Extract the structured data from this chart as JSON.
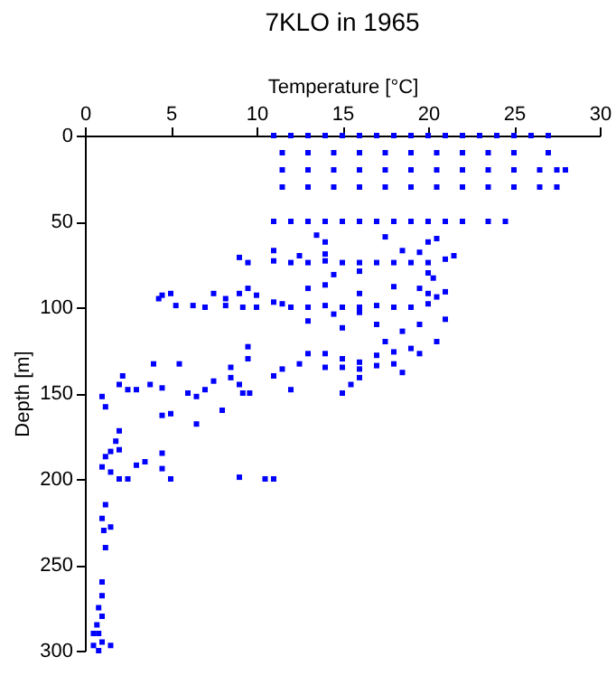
{
  "chart_data": {
    "type": "scatter",
    "title": "7KLO in 1965",
    "xlabel": "Temperature [°C]",
    "ylabel": "Depth [m]",
    "xlim": [
      0,
      30
    ],
    "xticks": [
      0,
      5,
      10,
      15,
      20,
      25,
      30
    ],
    "ylim": [
      300,
      0
    ],
    "yticks": [
      0,
      50,
      100,
      150,
      200,
      250,
      300
    ],
    "grid": false,
    "marker": "square",
    "series": [
      {
        "color": "#0000ff",
        "x": [
          11,
          12,
          13,
          14,
          15,
          16,
          17,
          18,
          19,
          20,
          21,
          22,
          23,
          24,
          25,
          26,
          27,
          11.5,
          13,
          14.5,
          16,
          17.5,
          19,
          20.5,
          22,
          23.5,
          25,
          27,
          11.5,
          13,
          14.5,
          16,
          17.5,
          19,
          20.5,
          22,
          23.5,
          25,
          26.5,
          27.5,
          28,
          11.5,
          13,
          14.5,
          16,
          17.5,
          19,
          20.5,
          22,
          23.5,
          25,
          26.5,
          27.5,
          11,
          12,
          13,
          14,
          15,
          16,
          17,
          18,
          19,
          20,
          21,
          22,
          23.5,
          24.5,
          13.5,
          14,
          17.5,
          20,
          20.5,
          11,
          12.5,
          14,
          18.5,
          19.5,
          9,
          9.5,
          11,
          12,
          13,
          14,
          15,
          16,
          17,
          18,
          19,
          20,
          21,
          21.5,
          14.5,
          16,
          20,
          20.3,
          9.5,
          13,
          14,
          18,
          19.5,
          4.5,
          5,
          7.5,
          9,
          10,
          16,
          20,
          4.3,
          5.3,
          6.3,
          7,
          8.2,
          8.2,
          9.2,
          10,
          11,
          11.5,
          12,
          13,
          14,
          15,
          16,
          17,
          18,
          19,
          20,
          20.5,
          21,
          13,
          15,
          17,
          18.5,
          19.5,
          21,
          20.5,
          17.5,
          14.5,
          16,
          9.5,
          9.5,
          13,
          14,
          15,
          16,
          17,
          18,
          19,
          19.5,
          14,
          15,
          16,
          17,
          18,
          18.5,
          16,
          15.5,
          15,
          11.5,
          11,
          12.5,
          2.2,
          2,
          2.5,
          3,
          3.8,
          4.5,
          6,
          6.5,
          7,
          7.5,
          8.5,
          9.2,
          9.6,
          12,
          4,
          5.5,
          8.5,
          9,
          1,
          1.2,
          4.5,
          5,
          8,
          6.5,
          2,
          1.8,
          1.5,
          1.2,
          2,
          4.5,
          1,
          1.5,
          2,
          2.5,
          3,
          3.5,
          4.5,
          5,
          10.5,
          9,
          11,
          1.2,
          1,
          1.1,
          1.5,
          1.2,
          1,
          1,
          0.8,
          1,
          0.7,
          0.8,
          1,
          0.5,
          0.8,
          1.5,
          0.5
        ],
        "values": [
          0,
          0,
          0,
          0,
          0,
          0,
          0,
          0,
          0,
          0,
          0,
          0,
          0,
          0,
          0,
          0,
          0,
          10,
          10,
          10,
          10,
          10,
          10,
          10,
          10,
          10,
          10,
          10,
          20,
          20,
          20,
          20,
          20,
          20,
          20,
          20,
          20,
          20,
          20,
          20,
          20,
          30,
          30,
          30,
          30,
          30,
          30,
          30,
          30,
          30,
          30,
          30,
          30,
          50,
          50,
          50,
          50,
          50,
          50,
          50,
          50,
          50,
          50,
          50,
          50,
          50,
          50,
          58,
          62,
          59,
          62,
          60,
          67,
          70,
          69,
          67,
          68,
          71,
          74,
          73,
          74,
          74,
          73,
          74,
          74,
          74,
          74,
          74,
          74,
          72,
          70,
          81,
          79,
          80,
          83,
          89,
          89,
          87,
          88,
          89,
          93,
          92,
          92,
          92,
          93,
          92,
          92,
          95,
          99,
          99,
          100,
          95,
          99,
          100,
          100,
          97,
          98,
          100,
          100,
          99,
          100,
          100,
          99,
          100,
          100,
          98,
          94,
          91,
          108,
          112,
          110,
          114,
          110,
          107,
          120,
          120,
          104,
          103,
          123,
          130,
          127,
          127,
          130,
          132,
          128,
          126,
          124,
          127,
          135,
          135,
          136,
          134,
          133,
          138,
          141,
          145,
          150,
          136,
          140,
          133,
          140,
          145,
          148,
          148,
          145,
          147,
          150,
          152,
          148,
          143,
          141,
          150,
          150,
          148,
          133,
          133,
          135,
          145,
          152,
          158,
          163,
          162,
          160,
          168,
          172,
          178,
          184,
          187,
          183,
          185,
          193,
          196,
          200,
          200,
          192,
          190,
          194,
          200,
          200,
          199,
          200,
          215,
          223,
          230,
          228,
          240,
          260,
          268,
          275,
          280,
          285,
          290,
          295,
          297,
          300,
          297,
          290
        ]
      }
    ]
  }
}
